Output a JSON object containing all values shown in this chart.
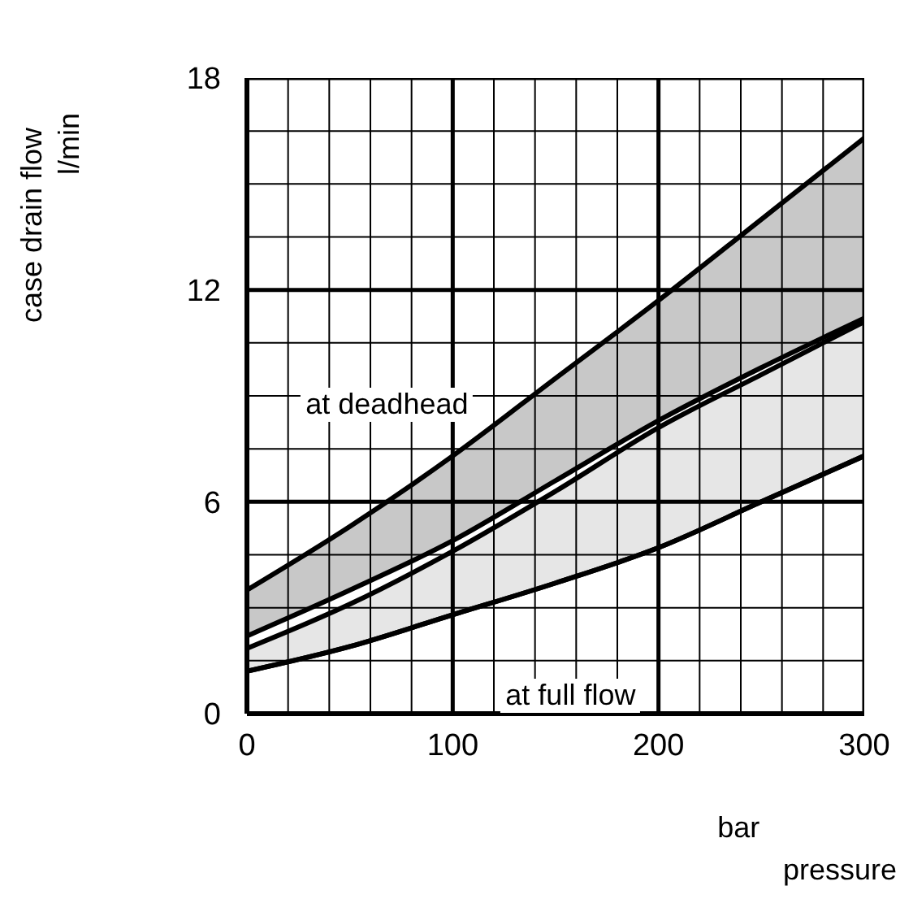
{
  "chart_data": {
    "type": "area",
    "xlabel": "pressure",
    "ylabel": "case drain flow",
    "x": [
      0,
      50,
      100,
      150,
      200,
      250,
      300
    ],
    "series": [
      {
        "color": "#c8c8c8",
        "values": [
          3.5,
          5.3,
          7.3,
          9.5,
          11.7,
          14,
          16.3
        ]
      },
      {
        "color": "#ffffff",
        "values": [
          2.2,
          3.5,
          4.9,
          6.6,
          8.3,
          9.8,
          11.2
        ]
      },
      {
        "color": "#e6e6e6",
        "values": [
          1.85,
          3.1,
          4.6,
          6.3,
          8.1,
          9.6,
          11.1
        ]
      },
      {
        "type": "line",
        "color": "#000000",
        "values": [
          1.2,
          1.9,
          2.8,
          3.7,
          4.7,
          6.0,
          7.3
        ]
      }
    ],
    "xlim": [
      0,
      300
    ],
    "xticks": [
      0,
      {
        "value": 20,
        "label": null
      },
      {
        "value": 40,
        "label": null
      },
      {
        "value": 60,
        "label": null
      },
      {
        "value": 80,
        "label": null
      },
      100,
      {
        "value": 120,
        "label": null
      },
      {
        "value": 140,
        "label": null
      },
      {
        "value": 160,
        "label": null
      },
      {
        "value": 180,
        "label": null
      },
      200,
      {
        "value": 220,
        "label": null
      },
      {
        "value": 240,
        "label": null
      },
      {
        "value": 260,
        "label": null
      },
      {
        "value": 280,
        "label": null
      },
      300
    ],
    "ylim": [
      0,
      18
    ],
    "yticks": [
      0,
      {
        "value": 1.5,
        "label": null
      },
      {
        "value": 3,
        "label": null
      },
      {
        "value": 4.5,
        "label": null
      },
      6,
      {
        "value": 7.5,
        "label": null
      },
      {
        "value": 9,
        "label": null
      },
      {
        "value": 10.5,
        "label": null
      },
      12,
      {
        "value": 13.5,
        "label": null
      },
      {
        "value": 15,
        "label": null
      },
      {
        "value": 16.5,
        "label": null
      },
      18
    ],
    "grid": true,
    "annotations": [
      "at deadhead",
      "at full flow",
      "l/min",
      "bar"
    ]
  }
}
